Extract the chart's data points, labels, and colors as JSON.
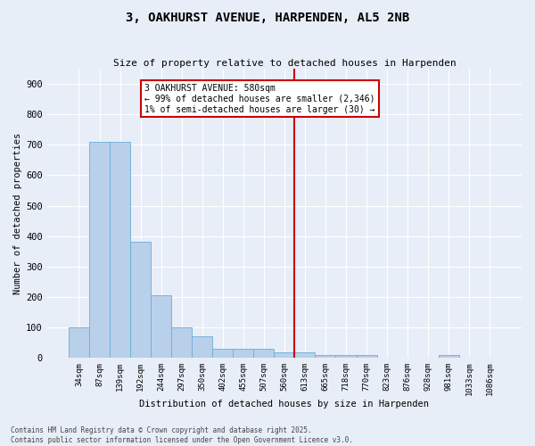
{
  "title": "3, OAKHURST AVENUE, HARPENDEN, AL5 2NB",
  "subtitle": "Size of property relative to detached houses in Harpenden",
  "xlabel": "Distribution of detached houses by size in Harpenden",
  "ylabel": "Number of detached properties",
  "bar_color": "#b8d0ea",
  "bar_edgecolor": "#6aaed6",
  "background_color": "#e8eef8",
  "grid_color": "#ffffff",
  "categories": [
    "34sqm",
    "87sqm",
    "139sqm",
    "192sqm",
    "244sqm",
    "297sqm",
    "350sqm",
    "402sqm",
    "455sqm",
    "507sqm",
    "560sqm",
    "613sqm",
    "665sqm",
    "718sqm",
    "770sqm",
    "823sqm",
    "876sqm",
    "928sqm",
    "981sqm",
    "1033sqm",
    "1086sqm"
  ],
  "values": [
    100,
    710,
    710,
    380,
    205,
    100,
    70,
    30,
    30,
    30,
    17,
    17,
    8,
    8,
    8,
    0,
    0,
    0,
    8,
    0,
    0
  ],
  "vline_color": "#cc0000",
  "vline_pos": 10.5,
  "annotation_title": "3 OAKHURST AVENUE: 580sqm",
  "annotation_line1": "← 99% of detached houses are smaller (2,346)",
  "annotation_line2": "1% of semi-detached houses are larger (30) →",
  "annotation_box_color": "#ffffff",
  "annotation_box_edgecolor": "#cc0000",
  "ylim": [
    0,
    950
  ],
  "yticks": [
    0,
    100,
    200,
    300,
    400,
    500,
    600,
    700,
    800,
    900
  ],
  "footnote1": "Contains HM Land Registry data © Crown copyright and database right 2025.",
  "footnote2": "Contains public sector information licensed under the Open Government Licence v3.0."
}
